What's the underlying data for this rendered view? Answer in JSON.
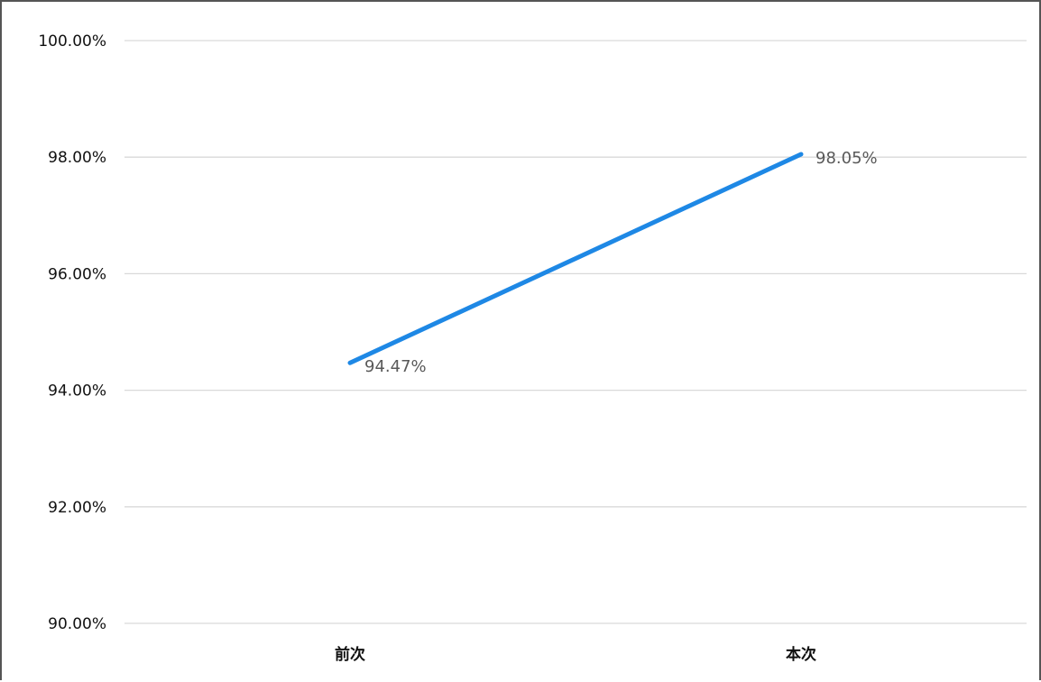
{
  "chart_data": {
    "type": "line",
    "categories": [
      "前次",
      "本次"
    ],
    "series": [
      {
        "values": [
          94.47,
          98.05
        ],
        "labels": [
          "94.47%",
          "98.05%"
        ],
        "color": "#1e88e5"
      }
    ],
    "ylim": [
      90,
      100
    ],
    "yticks": [
      90,
      92,
      94,
      96,
      98,
      100
    ],
    "ytick_labels": [
      "90.00%",
      "92.00%",
      "94.00%",
      "96.00%",
      "98.00%",
      "100.00%"
    ],
    "grid": true,
    "legend": "none"
  }
}
